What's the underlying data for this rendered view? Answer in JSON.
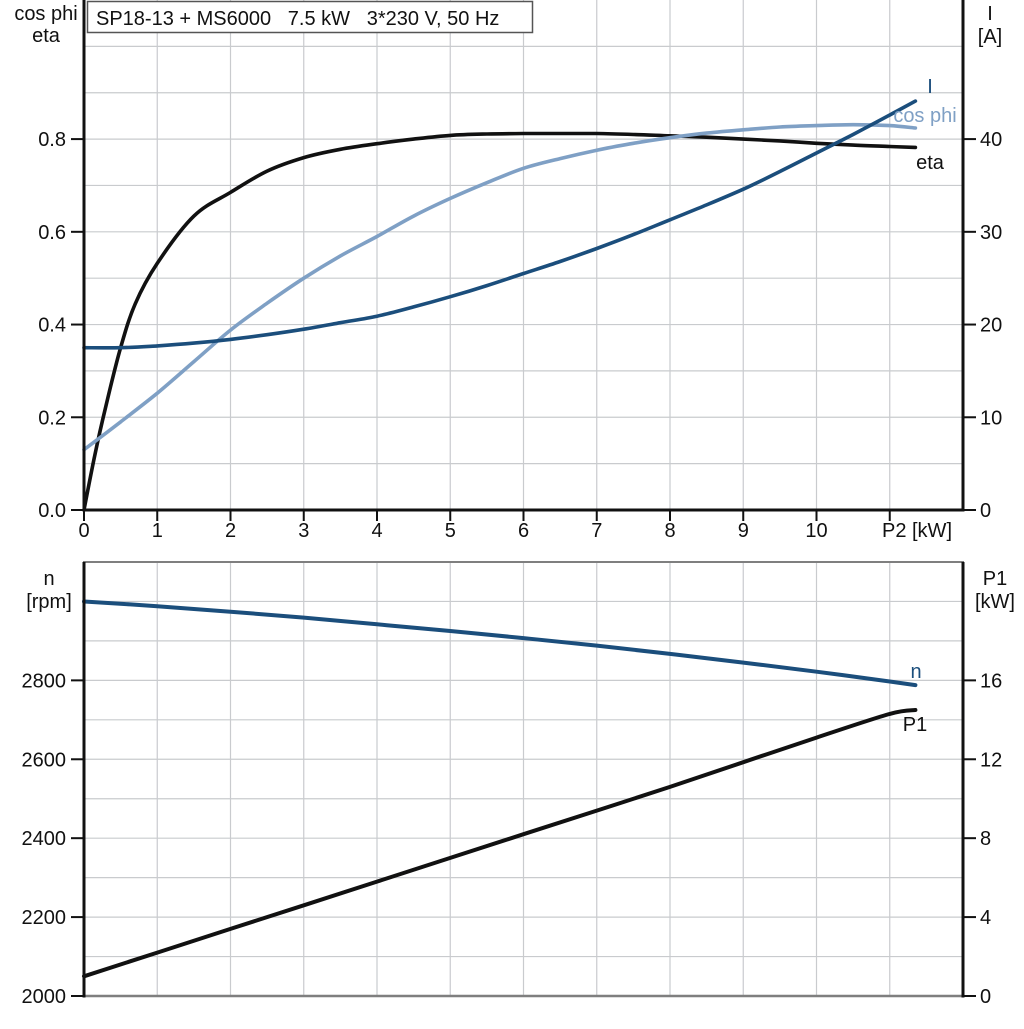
{
  "colors": {
    "curve_black": "#111111",
    "curve_dark_blue": "#1b4e7c",
    "curve_light_blue": "#7fa0c5",
    "gridline": "#c9cbce",
    "frame_gray": "#7f7f7f",
    "axis_black": "#111111",
    "title_border": "#555555",
    "background": "#ffffff"
  },
  "chart_data": [
    {
      "type": "line",
      "title": "SP18-13 + MS6000   7.5 kW   3*230 V, 50 Hz",
      "x_axis": {
        "label": "P2 [kW]",
        "min": 0,
        "max": 12,
        "grid_step": 1,
        "tick_values": [
          0,
          1,
          2,
          3,
          4,
          5,
          6,
          7,
          8,
          9,
          10,
          11
        ],
        "tick_labels": [
          "0",
          "1",
          "2",
          "3",
          "4",
          "5",
          "6",
          "7",
          "8",
          "9",
          "10",
          ""
        ]
      },
      "y_left": {
        "labels": [
          "cos phi",
          "eta"
        ],
        "min": 0,
        "max": 1.1,
        "grid_step": 0.1,
        "tick_values": [
          0,
          0.2,
          0.4,
          0.6,
          0.8
        ],
        "tick_labels": [
          "0.0",
          "0.2",
          "0.4",
          "0.6",
          "0.8"
        ]
      },
      "y_right": {
        "labels": [
          "I",
          "[A]"
        ],
        "min": 0,
        "max": 55,
        "tick_values": [
          0,
          10,
          20,
          30,
          40
        ],
        "tick_labels": [
          "0",
          "10",
          "20",
          "30",
          "40"
        ]
      },
      "legend_position": "curve-end-labels",
      "grid": true,
      "series": [
        {
          "name": "eta",
          "axis": "left",
          "color": "#111111",
          "points": [
            [
              0,
              0
            ],
            [
              0.15,
              0.12
            ],
            [
              0.3,
              0.225
            ],
            [
              0.5,
              0.35
            ],
            [
              0.7,
              0.445
            ],
            [
              1,
              0.532
            ],
            [
              1.5,
              0.634
            ],
            [
              2,
              0.685
            ],
            [
              2.5,
              0.731
            ],
            [
              3,
              0.76
            ],
            [
              3.5,
              0.778
            ],
            [
              4,
              0.79
            ],
            [
              4.5,
              0.8
            ],
            [
              5,
              0.808
            ],
            [
              5.5,
              0.811
            ],
            [
              6,
              0.812
            ],
            [
              6.5,
              0.812
            ],
            [
              7,
              0.812
            ],
            [
              7.5,
              0.81
            ],
            [
              8,
              0.807
            ],
            [
              8.5,
              0.804
            ],
            [
              9,
              0.8
            ],
            [
              9.5,
              0.796
            ],
            [
              10,
              0.791
            ],
            [
              10.5,
              0.787
            ],
            [
              11,
              0.784
            ],
            [
              11.35,
              0.782
            ]
          ]
        },
        {
          "name": "cos phi",
          "axis": "left",
          "color": "#7fa0c5",
          "points": [
            [
              0,
              0.13
            ],
            [
              0.5,
              0.19
            ],
            [
              1,
              0.252
            ],
            [
              1.5,
              0.32
            ],
            [
              2,
              0.388
            ],
            [
              2.5,
              0.446
            ],
            [
              3,
              0.5
            ],
            [
              3.5,
              0.548
            ],
            [
              4,
              0.59
            ],
            [
              4.5,
              0.634
            ],
            [
              5,
              0.672
            ],
            [
              5.5,
              0.706
            ],
            [
              6,
              0.737
            ],
            [
              6.5,
              0.758
            ],
            [
              7,
              0.776
            ],
            [
              7.5,
              0.791
            ],
            [
              8,
              0.803
            ],
            [
              8.5,
              0.813
            ],
            [
              9,
              0.82
            ],
            [
              9.5,
              0.826
            ],
            [
              10,
              0.829
            ],
            [
              10.5,
              0.831
            ],
            [
              11,
              0.829
            ],
            [
              11.35,
              0.824
            ]
          ]
        },
        {
          "name": "I",
          "axis": "right",
          "color": "#1b4e7c",
          "points": [
            [
              0,
              17.5
            ],
            [
              0.5,
              17.5
            ],
            [
              1,
              17.7
            ],
            [
              1.5,
              18
            ],
            [
              2,
              18.4
            ],
            [
              2.5,
              18.9
            ],
            [
              3,
              19.5
            ],
            [
              3.5,
              20.2
            ],
            [
              4,
              20.9
            ],
            [
              4.5,
              21.9
            ],
            [
              5,
              23
            ],
            [
              5.5,
              24.2
            ],
            [
              6,
              25.5
            ],
            [
              6.5,
              26.8
            ],
            [
              7,
              28.2
            ],
            [
              7.5,
              29.7
            ],
            [
              8,
              31.3
            ],
            [
              8.5,
              32.9
            ],
            [
              9,
              34.6
            ],
            [
              9.5,
              36.5
            ],
            [
              10,
              38.5
            ],
            [
              10.5,
              40.5
            ],
            [
              11,
              42.6
            ],
            [
              11.35,
              44.1
            ]
          ]
        }
      ]
    },
    {
      "type": "line",
      "title": "",
      "x_axis": {
        "label": "",
        "min": 0,
        "max": 12,
        "grid_step": 1,
        "tick_values": [],
        "tick_labels": []
      },
      "y_left": {
        "labels": [
          "n",
          "[rpm]"
        ],
        "min": 2000,
        "max": 3100,
        "grid_step": 100,
        "tick_values": [
          2000,
          2200,
          2400,
          2600,
          2800
        ],
        "tick_labels": [
          "2000",
          "2200",
          "2400",
          "2600",
          "2800"
        ]
      },
      "y_right": {
        "labels": [
          "P1",
          "[kW]"
        ],
        "min": 0,
        "max": 22,
        "tick_values": [
          0,
          4,
          8,
          12,
          16
        ],
        "tick_labels": [
          "0",
          "4",
          "8",
          "12",
          "16"
        ]
      },
      "legend_position": "curve-end-labels",
      "grid": true,
      "series": [
        {
          "name": "n",
          "axis": "left",
          "color": "#1b4e7c",
          "points": [
            [
              0,
              3000
            ],
            [
              1,
              2988
            ],
            [
              2,
              2974
            ],
            [
              3,
              2959
            ],
            [
              4,
              2942
            ],
            [
              5,
              2925
            ],
            [
              6,
              2907
            ],
            [
              7,
              2888
            ],
            [
              8,
              2867
            ],
            [
              9,
              2845
            ],
            [
              10,
              2822
            ],
            [
              11,
              2797
            ],
            [
              11.35,
              2788
            ]
          ]
        },
        {
          "name": "P1",
          "axis": "right",
          "color": "#111111",
          "points": [
            [
              0,
              1
            ],
            [
              1,
              2.2
            ],
            [
              2,
              3.4
            ],
            [
              3,
              4.6
            ],
            [
              4,
              5.8
            ],
            [
              5,
              7
            ],
            [
              6,
              8.2
            ],
            [
              7,
              9.4
            ],
            [
              8,
              10.6
            ],
            [
              9,
              11.85
            ],
            [
              10,
              13.1
            ],
            [
              11,
              14.3
            ],
            [
              11.35,
              14.5
            ]
          ]
        }
      ]
    }
  ]
}
